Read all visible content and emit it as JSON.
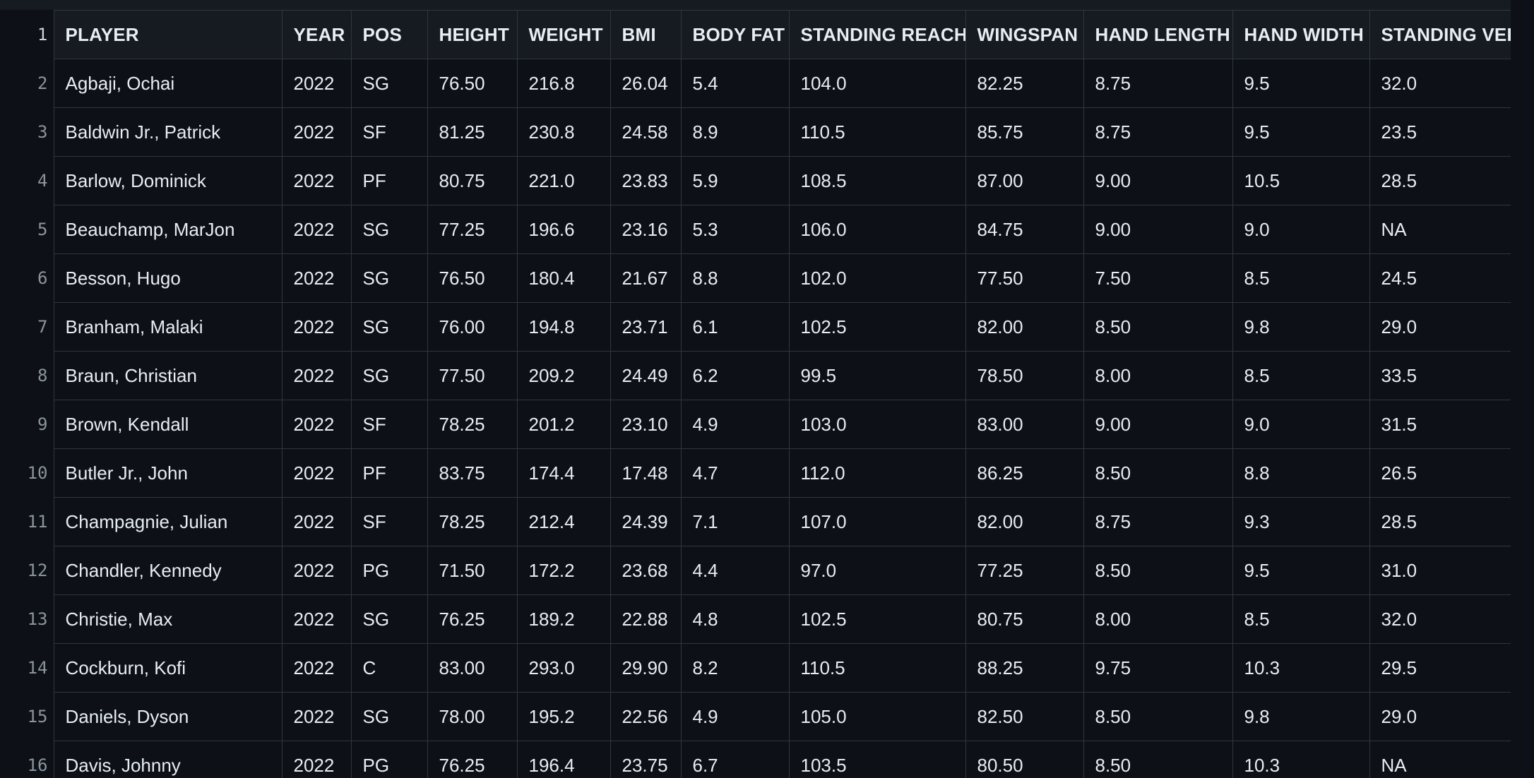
{
  "columns": [
    "PLAYER",
    "YEAR",
    "POS",
    "HEIGHT",
    "WEIGHT",
    "BMI",
    "BODY FAT",
    "STANDING REACH",
    "WINGSPAN",
    "HAND LENGTH",
    "HAND WIDTH",
    "STANDING VERT"
  ],
  "header_line_number": "1",
  "rows": [
    {
      "ln": "2",
      "cells": [
        "Agbaji, Ochai",
        "2022",
        "SG",
        "76.50",
        "216.8",
        "26.04",
        "5.4",
        "104.0",
        "82.25",
        "8.75",
        "9.5",
        "32.0"
      ]
    },
    {
      "ln": "3",
      "cells": [
        "Baldwin Jr., Patrick",
        "2022",
        "SF",
        "81.25",
        "230.8",
        "24.58",
        "8.9",
        "110.5",
        "85.75",
        "8.75",
        "9.5",
        "23.5"
      ]
    },
    {
      "ln": "4",
      "cells": [
        "Barlow, Dominick",
        "2022",
        "PF",
        "80.75",
        "221.0",
        "23.83",
        "5.9",
        "108.5",
        "87.00",
        "9.00",
        "10.5",
        "28.5"
      ]
    },
    {
      "ln": "5",
      "cells": [
        "Beauchamp, MarJon",
        "2022",
        "SG",
        "77.25",
        "196.6",
        "23.16",
        "5.3",
        "106.0",
        "84.75",
        "9.00",
        "9.0",
        "NA"
      ]
    },
    {
      "ln": "6",
      "cells": [
        "Besson, Hugo",
        "2022",
        "SG",
        "76.50",
        "180.4",
        "21.67",
        "8.8",
        "102.0",
        "77.50",
        "7.50",
        "8.5",
        "24.5"
      ]
    },
    {
      "ln": "7",
      "cells": [
        "Branham, Malaki",
        "2022",
        "SG",
        "76.00",
        "194.8",
        "23.71",
        "6.1",
        "102.5",
        "82.00",
        "8.50",
        "9.8",
        "29.0"
      ]
    },
    {
      "ln": "8",
      "cells": [
        "Braun, Christian",
        "2022",
        "SG",
        "77.50",
        "209.2",
        "24.49",
        "6.2",
        "99.5",
        "78.50",
        "8.00",
        "8.5",
        "33.5"
      ]
    },
    {
      "ln": "9",
      "cells": [
        "Brown, Kendall",
        "2022",
        "SF",
        "78.25",
        "201.2",
        "23.10",
        "4.9",
        "103.0",
        "83.00",
        "9.00",
        "9.0",
        "31.5"
      ]
    },
    {
      "ln": "10",
      "cells": [
        "Butler Jr., John",
        "2022",
        "PF",
        "83.75",
        "174.4",
        "17.48",
        "4.7",
        "112.0",
        "86.25",
        "8.50",
        "8.8",
        "26.5"
      ]
    },
    {
      "ln": "11",
      "cells": [
        "Champagnie, Julian",
        "2022",
        "SF",
        "78.25",
        "212.4",
        "24.39",
        "7.1",
        "107.0",
        "82.00",
        "8.75",
        "9.3",
        "28.5"
      ]
    },
    {
      "ln": "12",
      "cells": [
        "Chandler, Kennedy",
        "2022",
        "PG",
        "71.50",
        "172.2",
        "23.68",
        "4.4",
        "97.0",
        "77.25",
        "8.50",
        "9.5",
        "31.0"
      ]
    },
    {
      "ln": "13",
      "cells": [
        "Christie, Max",
        "2022",
        "SG",
        "76.25",
        "189.2",
        "22.88",
        "4.8",
        "102.5",
        "80.75",
        "8.00",
        "8.5",
        "32.0"
      ]
    },
    {
      "ln": "14",
      "cells": [
        "Cockburn, Kofi",
        "2022",
        "C",
        "83.00",
        "293.0",
        "29.90",
        "8.2",
        "110.5",
        "88.25",
        "9.75",
        "10.3",
        "29.5"
      ]
    },
    {
      "ln": "15",
      "cells": [
        "Daniels, Dyson",
        "2022",
        "SG",
        "78.00",
        "195.2",
        "22.56",
        "4.9",
        "105.0",
        "82.50",
        "8.50",
        "9.8",
        "29.0"
      ]
    },
    {
      "ln": "16",
      "cells": [
        "Davis, Johnny",
        "2022",
        "PG",
        "76.25",
        "196.4",
        "23.75",
        "6.7",
        "103.5",
        "80.50",
        "8.50",
        "10.3",
        "NA"
      ]
    }
  ]
}
